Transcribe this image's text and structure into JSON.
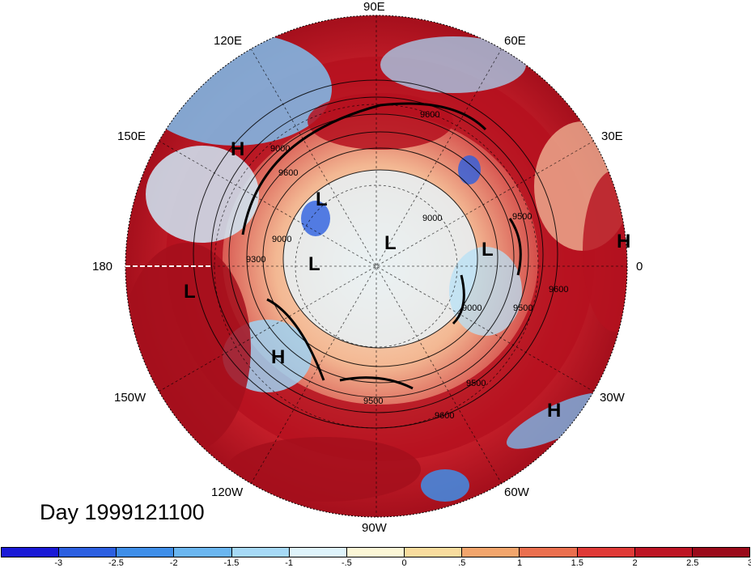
{
  "map": {
    "projection": "north-polar-stereographic",
    "contour_labels": [
      "9600",
      "9600",
      "9500",
      "9500",
      "9000",
      "9000",
      "9000",
      "9300",
      "9500",
      "9600",
      "9000",
      "9500",
      "9600"
    ],
    "highs_lows": [
      "H",
      "H",
      "H",
      "H",
      "L",
      "L",
      "L",
      "L",
      "L"
    ]
  },
  "longitudes": [
    "90E",
    "60E",
    "30E",
    "0",
    "30W",
    "60W",
    "90W",
    "120W",
    "150W",
    "180",
    "150E",
    "120E"
  ],
  "day_label": "Day 1999121100",
  "colorbar": {
    "colors": [
      "#1a1ad6",
      "#2c5fe0",
      "#3f8ee8",
      "#6bb6f0",
      "#a6d9f6",
      "#def3fb",
      "#fbf6d6",
      "#f8dc9e",
      "#f2a56c",
      "#ea6f4e",
      "#df3a37",
      "#bd1524",
      "#9a0a1a"
    ],
    "ticks": [
      "-3",
      "-2.5",
      "-2",
      "-1.5",
      "-1",
      "-.5",
      "0",
      ".5",
      "1",
      "1.5",
      "2",
      "2.5",
      "3"
    ]
  }
}
